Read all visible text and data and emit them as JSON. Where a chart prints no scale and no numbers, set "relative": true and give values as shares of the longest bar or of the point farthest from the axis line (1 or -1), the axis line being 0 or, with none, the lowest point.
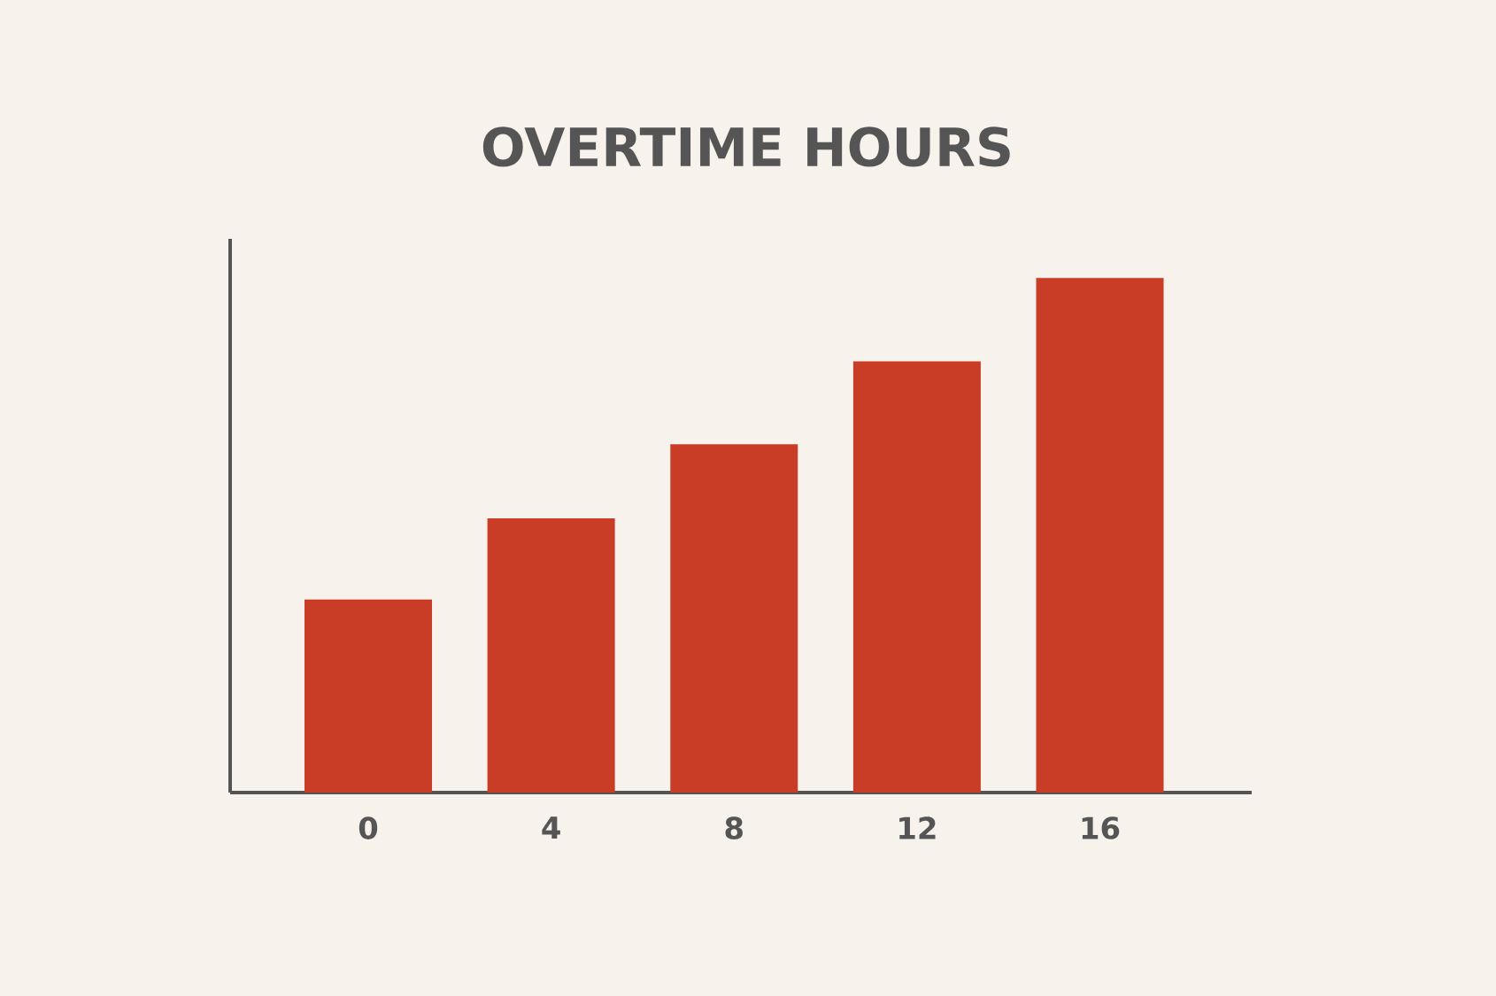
{
  "chart_data": {
    "type": "bar",
    "title": "OVERTIME HOURS",
    "categories": [
      "0",
      "4",
      "8",
      "12",
      "16"
    ],
    "values": [
      0.375,
      0.533,
      0.677,
      0.838,
      1
    ],
    "color": "#c93c26",
    "relative": true
  }
}
